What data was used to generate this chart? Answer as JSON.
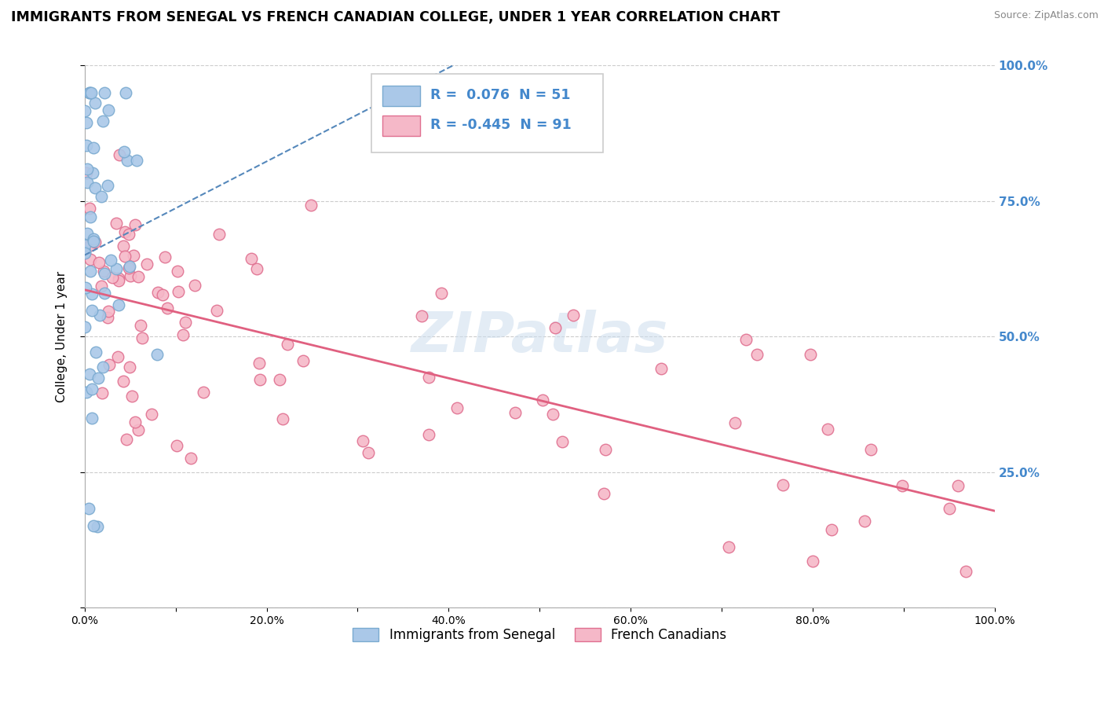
{
  "title": "IMMIGRANTS FROM SENEGAL VS FRENCH CANADIAN COLLEGE, UNDER 1 YEAR CORRELATION CHART",
  "source": "Source: ZipAtlas.com",
  "ylabel": "College, Under 1 year",
  "r_blue": 0.076,
  "n_blue": 51,
  "r_pink": -0.445,
  "n_pink": 91,
  "blue_color": "#aac8e8",
  "blue_edge_color": "#7aaad0",
  "pink_color": "#f5b8c8",
  "pink_edge_color": "#e07090",
  "blue_line_color": "#5588bb",
  "pink_line_color": "#e06080",
  "right_axis_color": "#4488cc",
  "background_color": "#ffffff",
  "grid_color": "#cccccc",
  "watermark": "ZIPatlas",
  "legend_labels": [
    "Immigrants from Senegal",
    "French Canadians"
  ],
  "blue_seed": 12,
  "pink_seed": 7
}
